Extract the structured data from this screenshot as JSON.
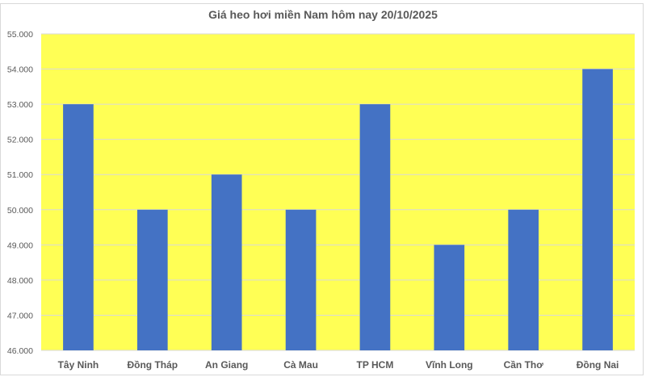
{
  "chart_data": {
    "type": "bar",
    "title": "Giá heo hơi miền Nam hôm nay 20/10/2025",
    "categories": [
      "Tây Ninh",
      "Đồng Tháp",
      "An Giang",
      "Cà Mau",
      "TP HCM",
      "Vĩnh Long",
      "Cần Thơ",
      "Đồng Nai"
    ],
    "values": [
      53000,
      50000,
      51000,
      50000,
      53000,
      49000,
      50000,
      54000
    ],
    "xlabel": "",
    "ylabel": "",
    "ylim": [
      46000,
      55000
    ],
    "yticks": [
      46000,
      47000,
      48000,
      49000,
      50000,
      51000,
      52000,
      53000,
      54000,
      55000
    ],
    "ytick_labels": [
      "46.000",
      "47.000",
      "48.000",
      "49.000",
      "50.000",
      "51.000",
      "52.000",
      "53.000",
      "54.000",
      "55.000"
    ],
    "grid": true,
    "legend": "none",
    "colors": {
      "bar": "#4472c4",
      "plot_background": "#ffff55",
      "gridline": "#d9d9d9",
      "text": "#595959"
    }
  }
}
